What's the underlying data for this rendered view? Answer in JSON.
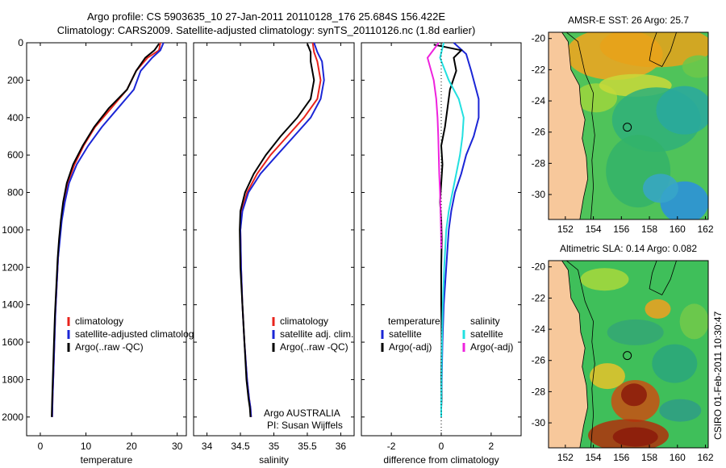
{
  "header": {
    "line1": "Argo profile: CS 5903635_10 27-Jan-2011 20110128_176 25.684S 156.422E",
    "line2": "Climatology: CARS2009. Satellite-adjusted climatology: synTS_20110126.nc (1.8d earlier)"
  },
  "chart_data": [
    {
      "id": "temperature",
      "type": "line",
      "xlabel": "temperature",
      "xlim": [
        -3,
        32
      ],
      "ylim": [
        0,
        2100
      ],
      "y_reversed": true,
      "xticks": [
        "0",
        "10",
        "20",
        "30"
      ],
      "xtick_values": [
        0,
        10,
        20,
        30
      ],
      "yticks": [
        "0",
        "200",
        "400",
        "600",
        "800",
        "1000",
        "1200",
        "1400",
        "1600",
        "1800",
        "2000"
      ],
      "ytick_values": [
        0,
        200,
        400,
        600,
        800,
        1000,
        1200,
        1400,
        1600,
        1800,
        2000
      ],
      "legend": {
        "placement": "lower-middle",
        "entries": [
          "climatology",
          "satellite-adjusted climatolog",
          "Argo(..raw -QC)"
        ]
      },
      "series": [
        {
          "name": "climatology",
          "color": "#e8231c",
          "x": [
            26.3,
            26.0,
            23.5,
            21.0,
            19.0,
            15.5,
            12.0,
            9.5,
            7.5,
            6.0,
            5.2,
            4.6,
            4.2,
            3.9,
            3.6,
            3.3,
            3.1,
            2.9,
            2.7,
            2.6
          ],
          "y": [
            0,
            40,
            80,
            150,
            250,
            350,
            450,
            550,
            650,
            750,
            850,
            950,
            1050,
            1150,
            1300,
            1450,
            1600,
            1750,
            1900,
            2000
          ]
        },
        {
          "name": "satellite-adjusted climatology",
          "color": "#1b26d6",
          "x": [
            27.0,
            26.3,
            24.5,
            22.0,
            20.5,
            17.0,
            13.5,
            10.5,
            8.0,
            6.3,
            5.4,
            4.7,
            4.3,
            3.9,
            3.6,
            3.3,
            3.1,
            2.9,
            2.7,
            2.6
          ],
          "y": [
            0,
            40,
            80,
            150,
            250,
            350,
            450,
            550,
            650,
            750,
            850,
            950,
            1050,
            1150,
            1300,
            1450,
            1600,
            1750,
            1900,
            2000
          ]
        },
        {
          "name": "Argo(..raw -QC)",
          "color": "#000000",
          "x": [
            26.0,
            25.0,
            23.0,
            21.0,
            19.0,
            15.0,
            11.8,
            9.3,
            7.2,
            5.8,
            5.0,
            4.5,
            4.1,
            3.8,
            3.5,
            3.2,
            3.0,
            2.8,
            2.6,
            2.5
          ],
          "y": [
            5,
            40,
            80,
            150,
            250,
            350,
            450,
            550,
            650,
            750,
            850,
            950,
            1050,
            1150,
            1300,
            1450,
            1600,
            1750,
            1900,
            2000
          ]
        }
      ]
    },
    {
      "id": "salinity",
      "type": "line",
      "xlabel": "salinity",
      "xlim": [
        33.8,
        36.2
      ],
      "ylim": [
        0,
        2100
      ],
      "y_reversed": true,
      "xticks": [
        "34",
        "34.5",
        "35",
        "35.5",
        "36"
      ],
      "xtick_values": [
        34,
        34.5,
        35,
        35.5,
        36
      ],
      "legend": {
        "placement": "lower-right",
        "entries": [
          "climatology",
          "satellite adj. clim.",
          "Argo(..raw -QC)"
        ]
      },
      "annotation": [
        "Argo AUSTRALIA",
        "PI: Susan Wijffels"
      ],
      "series": [
        {
          "name": "climatology",
          "color": "#e8231c",
          "x": [
            35.58,
            35.6,
            35.65,
            35.7,
            35.65,
            35.45,
            35.2,
            34.95,
            34.75,
            34.6,
            34.52,
            34.5,
            34.51,
            34.53,
            34.56,
            34.6,
            34.63,
            34.65,
            34.66
          ],
          "y": [
            0,
            50,
            100,
            200,
            300,
            400,
            500,
            600,
            700,
            800,
            900,
            1000,
            1200,
            1400,
            1600,
            1800,
            1900,
            1950,
            2000
          ]
        },
        {
          "name": "satellite adj. clim.",
          "color": "#1b26d6",
          "x": [
            35.6,
            35.65,
            35.72,
            35.75,
            35.7,
            35.55,
            35.3,
            35.05,
            34.8,
            34.62,
            34.53,
            34.5,
            34.51,
            34.53,
            34.56,
            34.6,
            34.63,
            34.65,
            34.66
          ],
          "y": [
            0,
            50,
            100,
            200,
            300,
            400,
            500,
            600,
            700,
            800,
            900,
            1000,
            1200,
            1400,
            1600,
            1800,
            1900,
            1950,
            2000
          ]
        },
        {
          "name": "Argo(..raw -QC)",
          "color": "#000000",
          "x": [
            35.5,
            35.55,
            35.55,
            35.6,
            35.55,
            35.35,
            35.1,
            34.88,
            34.7,
            34.57,
            34.5,
            34.49,
            34.5,
            34.53,
            34.56,
            34.59,
            34.62,
            34.64,
            34.65
          ],
          "y": [
            5,
            50,
            100,
            200,
            300,
            400,
            500,
            600,
            700,
            800,
            900,
            1000,
            1200,
            1400,
            1600,
            1800,
            1900,
            1950,
            2000
          ]
        }
      ]
    },
    {
      "id": "difference",
      "type": "line",
      "xlabel": "difference from climatology",
      "xlim": [
        -3.2,
        3.2
      ],
      "ylim": [
        0,
        2100
      ],
      "y_reversed": true,
      "xticks": [
        "-2",
        "0",
        "2"
      ],
      "xtick_values": [
        -2,
        0,
        2
      ],
      "legend": {
        "placement": "lower-middle",
        "group_titles": [
          "temperature",
          "salinity"
        ],
        "entries": [
          "satellite",
          "Argo(-adj)",
          "satellite",
          "Argo(-adj)"
        ]
      },
      "series": [
        {
          "name": "temperature satellite",
          "color": "#1b26d6",
          "x": [
            0.5,
            1.0,
            1.2,
            1.5,
            1.5,
            1.3,
            1.0,
            0.8,
            0.55,
            0.4,
            0.3,
            0.2,
            0.1,
            0.05,
            0.02,
            0.01,
            0.0,
            0.0
          ],
          "y": [
            0,
            60,
            150,
            300,
            400,
            500,
            600,
            700,
            800,
            900,
            1000,
            1200,
            1400,
            1600,
            1800,
            1900,
            1950,
            2000
          ]
        },
        {
          "name": "temperature Argo(-adj)",
          "color": "#000000",
          "x": [
            -0.3,
            0.8,
            0.5,
            0.6,
            0.35,
            0.25,
            0.15,
            0.0,
            0.05,
            0.0,
            -0.05,
            0.0,
            0.02,
            0.0,
            0.0,
            0.02,
            0.0,
            0.01,
            0.0,
            0.0
          ],
          "y": [
            10,
            40,
            80,
            150,
            250,
            350,
            450,
            550,
            650,
            750,
            850,
            950,
            1050,
            1200,
            1400,
            1600,
            1800,
            1900,
            1950,
            2000
          ]
        },
        {
          "name": "salinity satellite",
          "color": "#22e0e0",
          "x": [
            0.1,
            -0.05,
            0.3,
            0.7,
            0.9,
            0.85,
            0.75,
            0.6,
            0.45,
            0.3,
            0.2,
            0.12,
            0.06,
            0.03,
            0.01,
            0.0,
            0.0
          ],
          "y": [
            0,
            80,
            200,
            300,
            400,
            500,
            600,
            700,
            800,
            900,
            1000,
            1200,
            1400,
            1600,
            1800,
            1950,
            2000
          ]
        },
        {
          "name": "salinity Argo(-adj)",
          "color": "#ee22dd",
          "x": [
            -0.1,
            -0.55,
            -0.3,
            -0.2,
            -0.15,
            -0.12,
            -0.1,
            -0.08,
            -0.05,
            -0.03,
            -0.01,
            0.0
          ],
          "y": [
            0,
            80,
            200,
            300,
            400,
            500,
            600,
            700,
            800,
            900,
            1000,
            1100
          ]
        }
      ]
    },
    {
      "id": "sst-map",
      "type": "heatmap",
      "title": "AMSR-E SST: 26 Argo: 25.7",
      "xticks": [
        "152",
        "154",
        "156",
        "158",
        "160",
        "162"
      ],
      "yticks": [
        "-20",
        "-22",
        "-24",
        "-26",
        "-28",
        "-30"
      ],
      "xlim": [
        150.8,
        162.2
      ],
      "ylim": [
        -31.6,
        -19.6
      ],
      "argo_position": [
        156.422,
        -25.684
      ]
    },
    {
      "id": "sla-map",
      "type": "heatmap",
      "title": "Altimetric SLA: 0.14 Argo: 0.082",
      "xticks": [
        "152",
        "154",
        "156",
        "158",
        "160",
        "162"
      ],
      "yticks": [
        "-20",
        "-22",
        "-24",
        "-26",
        "-28",
        "-30"
      ],
      "xlim": [
        150.8,
        162.2
      ],
      "ylim": [
        -31.6,
        -19.6
      ],
      "argo_position": [
        156.422,
        -25.684
      ]
    }
  ],
  "footer": {
    "stamp": "CSIRO 01-Feb-2011 10:30:47"
  },
  "colors": {
    "land": "#f7c89b",
    "coast": "#000000",
    "ocean_low": "#1e88e5",
    "ocean_mid": "#3fbf5a",
    "ocean_high": "#f0a020",
    "sla_high": "#8b1a0a"
  }
}
